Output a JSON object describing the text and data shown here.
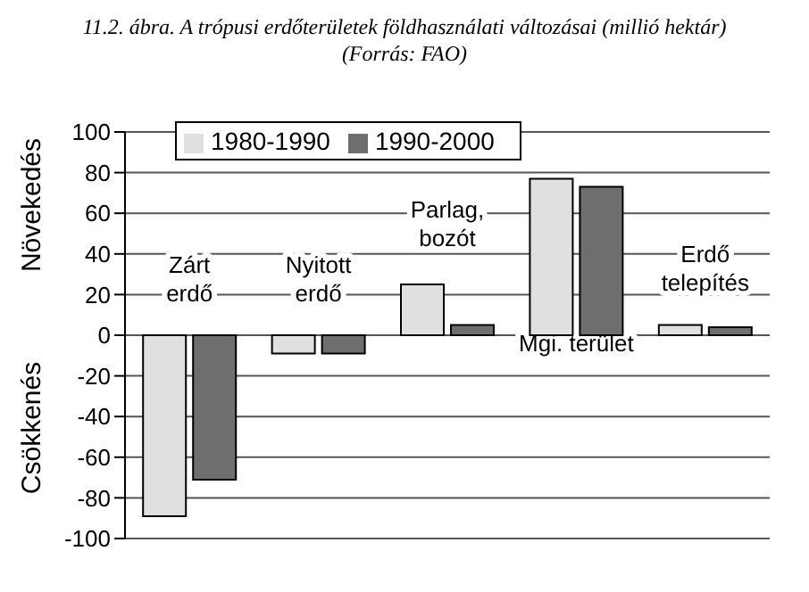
{
  "chart_data": {
    "type": "bar",
    "title": "11.2. ábra. A trópusi erdőterületek földhasználati változásai (millió hektár)",
    "subtitle": "(Forrás: FAO)",
    "annotations": [
      "Növekedés",
      "Csökkenés"
    ],
    "categories": [
      "Zárt\nerdő",
      "Nyitott\nerdő",
      "Parlag,\nbozót",
      "Mgi. terület",
      "Erdő\ntelepítés"
    ],
    "series": [
      {
        "name": "1980-1990",
        "color": "#e0e0e0",
        "values": [
          -89,
          -9,
          25,
          77,
          5
        ]
      },
      {
        "name": "1990-2000",
        "color": "#6e6e6e",
        "values": [
          -71,
          -9,
          5,
          73,
          4
        ]
      }
    ],
    "ylim": [
      -100,
      100
    ],
    "yticks": [
      -100,
      -80,
      -60,
      -40,
      -20,
      0,
      20,
      40,
      60,
      80,
      100
    ],
    "grid": "y",
    "legend": "top left"
  }
}
